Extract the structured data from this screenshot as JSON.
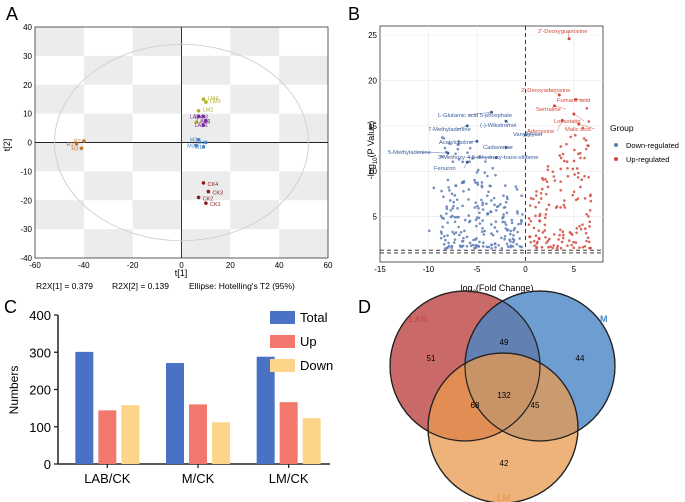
{
  "panels": {
    "a": {
      "letter": "A",
      "xlabel": "t[1]",
      "ylabel": "t[2]",
      "xticks": [
        -60,
        -40,
        -20,
        0,
        20,
        40,
        60
      ],
      "yticks": [
        -40,
        -30,
        -20,
        -10,
        0,
        10,
        20,
        30,
        40
      ],
      "footer": [
        "R2X[1] = 0.379",
        "R2X[2] = 0.139",
        "Ellipse: Hotelling's T2 (95%)"
      ]
    },
    "b": {
      "letter": "B",
      "xlabel": "log2(Fold Change)",
      "ylabel": "-log10(P Value)",
      "xticks": [
        -15,
        -10,
        -5,
        0,
        5
      ],
      "yticks": [
        5,
        10,
        15,
        20,
        25
      ],
      "legend_title": "Group",
      "legend": [
        "Down-regulated",
        "Up-regulated"
      ]
    },
    "c": {
      "letter": "C",
      "ylabel": "Numbers"
    },
    "d": {
      "letter": "D"
    }
  },
  "colors": {
    "down": "#3b5b9a",
    "up": "#c0392b",
    "total": "#4a72c4",
    "up_bar": "#f2776c",
    "down_bar": "#fdd58a",
    "lab": "#c0504d",
    "m": "#4a86c5",
    "lm": "#e89a4e",
    "ck": "#8b1a1a",
    "r": "#c0742a",
    "lmlab": "#b5b023",
    "lab_pt": "#7b2d9e"
  },
  "chart_data": [
    {
      "type": "scatter",
      "title": "",
      "xlabel": "t[1]",
      "ylabel": "t[2]",
      "xlim": [
        -60,
        60
      ],
      "ylim": [
        -40,
        40
      ],
      "points": [
        {
          "label": "R1",
          "x": -43,
          "y": -0.5,
          "group": "R"
        },
        {
          "label": "R2",
          "x": -40,
          "y": 0.5,
          "group": "R"
        },
        {
          "label": "R3",
          "x": -41,
          "y": -2,
          "group": "R"
        },
        {
          "label": "LM4",
          "x": 9,
          "y": 15,
          "group": "LM"
        },
        {
          "label": "LM3",
          "x": 10,
          "y": 14,
          "group": "LM"
        },
        {
          "label": "LM2",
          "x": 7,
          "y": 11,
          "group": "LM"
        },
        {
          "label": "LM1",
          "x": 6,
          "y": 7,
          "group": "LM"
        },
        {
          "label": "LAB4",
          "x": 7,
          "y": 9,
          "group": "LAB"
        },
        {
          "label": "LAB3",
          "x": 9,
          "y": 9,
          "group": "LAB"
        },
        {
          "label": "LAB2",
          "x": 10,
          "y": 7.5,
          "group": "LAB"
        },
        {
          "label": "LAB1",
          "x": 9,
          "y": 6,
          "group": "LAB"
        },
        {
          "label": "M3",
          "x": 7,
          "y": 1,
          "group": "M"
        },
        {
          "label": "M1",
          "x": 9,
          "y": -1.5,
          "group": "M"
        },
        {
          "label": "M2",
          "x": 6,
          "y": -1,
          "group": "M"
        },
        {
          "label": "M4",
          "x": 10,
          "y": 0,
          "group": "M"
        },
        {
          "label": "CK4",
          "x": 9,
          "y": -14,
          "group": "CK"
        },
        {
          "label": "CK3",
          "x": 11,
          "y": -17,
          "group": "CK"
        },
        {
          "label": "CK2",
          "x": 7,
          "y": -19,
          "group": "CK"
        },
        {
          "label": "CK1",
          "x": 10,
          "y": -21,
          "group": "CK"
        }
      ]
    },
    {
      "type": "scatter",
      "title": "",
      "xlabel": "log2(Fold Change)",
      "ylabel": "-log10(P Value)",
      "xlim": [
        -15,
        8
      ],
      "ylim": [
        0,
        26
      ],
      "labels": [
        {
          "text": "2'-Deoxyguanosine",
          "x": 4.5,
          "y": 24.6,
          "group": "up"
        },
        {
          "text": "2'-Deoxyadenosine",
          "x": 3.5,
          "y": 18.4,
          "group": "up"
        },
        {
          "text": "Fumaric acid",
          "x": 5.2,
          "y": 17.9,
          "group": "up"
        },
        {
          "text": "Sertraline",
          "x": 3,
          "y": 17.2,
          "group": "up"
        },
        {
          "text": "Lovastatin",
          "x": 5,
          "y": 16.3,
          "group": "up"
        },
        {
          "text": "Adenosine",
          "x": 3.8,
          "y": 15.6,
          "group": "up"
        },
        {
          "text": "Malic acid",
          "x": 5.5,
          "y": 15.2,
          "group": "up"
        },
        {
          "text": "L-Glutamic acid 5-phosphate",
          "x": -3.5,
          "y": 16.5,
          "group": "down"
        },
        {
          "text": "7-Methyladenine",
          "x": -6,
          "y": 15,
          "group": "down"
        },
        {
          "text": "(-)-Wikstromol",
          "x": -2,
          "y": 15.5,
          "group": "down"
        },
        {
          "text": "Acetylcholine",
          "x": -5,
          "y": 13.3,
          "group": "down"
        },
        {
          "text": "Vanylglycol",
          "x": 0,
          "y": 14,
          "group": "down"
        },
        {
          "text": "5-Methyladenine",
          "x": -8,
          "y": 12,
          "group": "down"
        },
        {
          "text": "Cadaverine",
          "x": -2,
          "y": 12.6,
          "group": "down"
        },
        {
          "text": "3-Methoxy-4,5-dihydroxy-trans-stilbene",
          "x": -3,
          "y": 11.5,
          "group": "down"
        },
        {
          "text": "Fenuron",
          "x": -6,
          "y": 11,
          "group": "down"
        }
      ]
    },
    {
      "type": "bar",
      "title": "",
      "categories": [
        "LAB/CK",
        "M/CK",
        "LM/CK"
      ],
      "series": [
        {
          "name": "Total",
          "values": [
            301,
            271,
            288
          ]
        },
        {
          "name": "Up",
          "values": [
            144,
            160,
            166
          ]
        },
        {
          "name": "Down",
          "values": [
            158,
            112,
            123
          ]
        }
      ],
      "ylabel": "Numbers",
      "ylim": [
        0,
        400
      ],
      "yticks": [
        0,
        100,
        200,
        300,
        400
      ],
      "legend": "top-right"
    },
    {
      "type": "venn",
      "sets": [
        "LAB",
        "M",
        "LM"
      ],
      "regions": {
        "LAB": 51,
        "M": 44,
        "LM": 42,
        "LAB&M": 49,
        "LAB&LM": 68,
        "M&LM": 45,
        "LAB&M&LM": 132
      }
    }
  ]
}
